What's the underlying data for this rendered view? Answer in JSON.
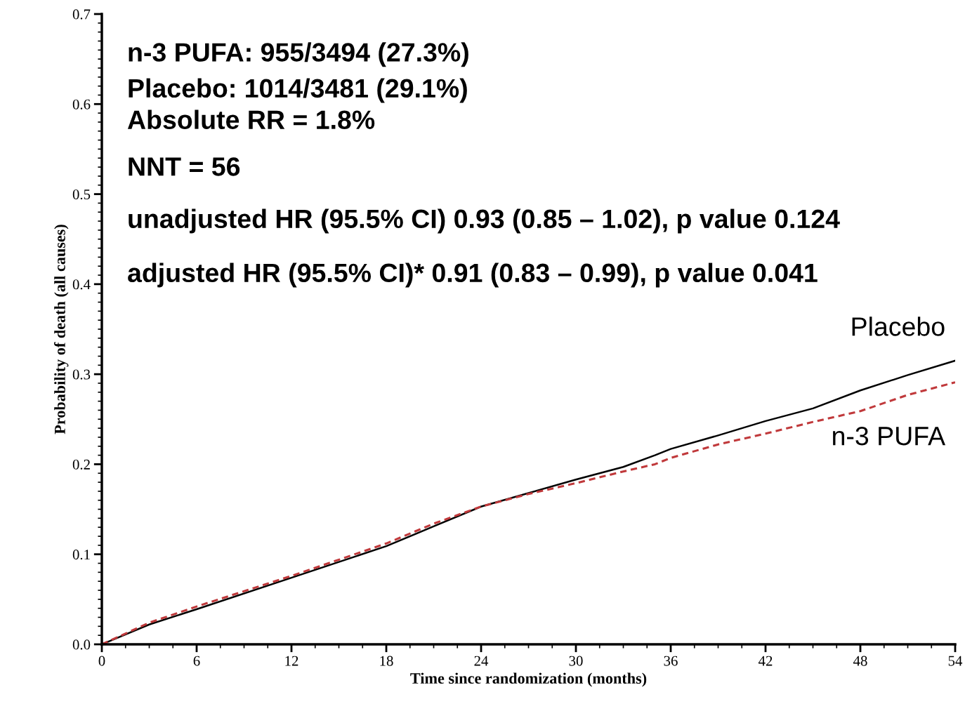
{
  "chart_data": {
    "type": "line",
    "xlabel": "Time since randomization (months)",
    "ylabel": "Probability of death (all causes)",
    "x": [
      0,
      3,
      6,
      12,
      18,
      21,
      24,
      27,
      30,
      33,
      35,
      36,
      39,
      42,
      45,
      48,
      51,
      54
    ],
    "series": [
      {
        "name": "Placebo",
        "color": "#000000",
        "line_style": "solid",
        "values": [
          0,
          0.022,
          0.039,
          0.074,
          0.109,
          0.131,
          0.153,
          0.168,
          0.183,
          0.197,
          0.21,
          0.217,
          0.232,
          0.248,
          0.262,
          0.282,
          0.299,
          0.315
        ]
      },
      {
        "name": "n-3 PUFA",
        "color": "#c0393b",
        "line_style": "dashed",
        "values": [
          0,
          0.024,
          0.042,
          0.076,
          0.112,
          0.134,
          0.153,
          0.167,
          0.179,
          0.192,
          0.2,
          0.207,
          0.222,
          0.234,
          0.247,
          0.259,
          0.277,
          0.291
        ]
      }
    ],
    "xlim": [
      0,
      54
    ],
    "xticks": [
      0,
      6,
      12,
      18,
      24,
      30,
      36,
      42,
      48,
      54
    ],
    "ylim": [
      0,
      0.7
    ],
    "yticks": [
      {
        "value": 0,
        "label": "0.0"
      },
      0.1,
      0.2,
      0.3,
      0.4,
      0.5,
      0.6,
      0.7
    ],
    "grid": false,
    "legend": false,
    "marker": "none",
    "annotations": [
      "n-3 PUFA: 955/3494 (27.3%)",
      "Placebo: 1014/3481 (29.1%)",
      "Absolute RR = 1.8%",
      "NNT = 56",
      "unadjusted HR (95.5% CI) 0.93 (0.85 – 1.02), p value 0.124",
      "adjusted HR (95.5% CI)* 0.91 (0.83 – 0.99), p value 0.041"
    ]
  }
}
